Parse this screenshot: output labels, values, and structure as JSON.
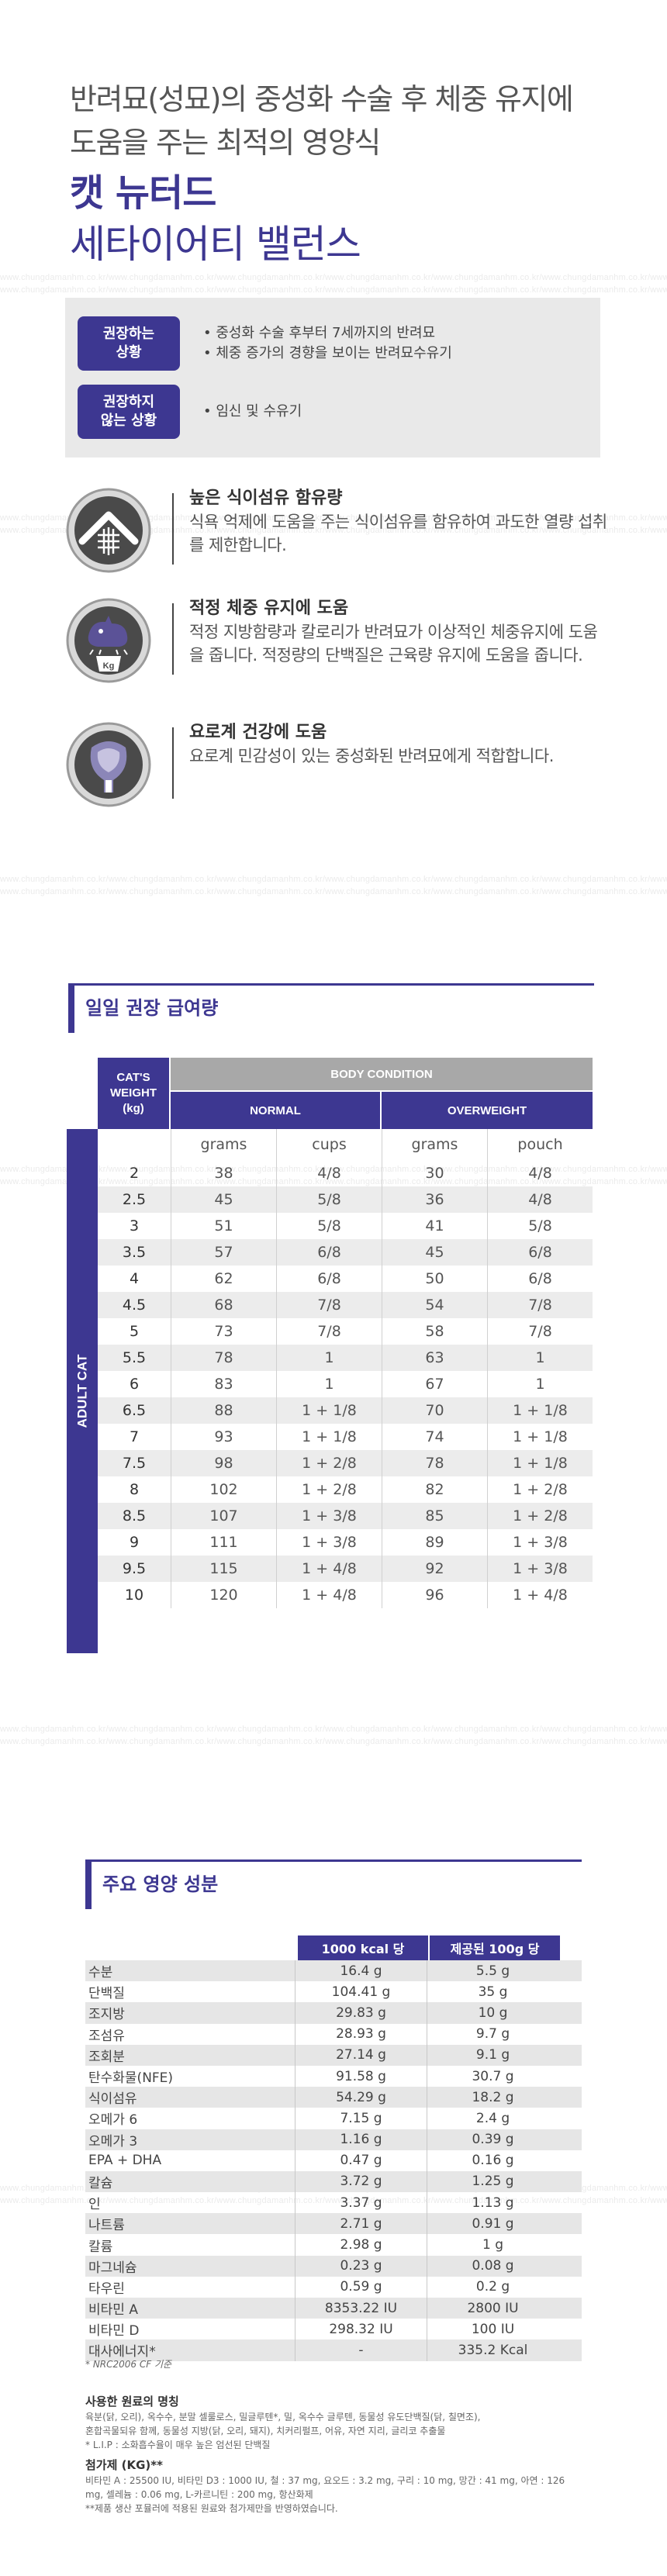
{
  "watermark": "www.chungdamanhm.co.kr/www.chungdamanhm.co.kr/www.chungdamanhm.co.kr/www.chungdamanhm.co.kr/www.chungdamanhm.co.kr/www.chungdamanhm.co.kr/www.chungdamanhm.co.kr/",
  "hero": {
    "subtitle_line1": "반려묘(성묘)의 중성화 수술 후 체중 유지에",
    "subtitle_line2": "도움을 주는 최적의 영양식",
    "product_name": "캣 뉴터드",
    "product_line": "세타이어티 밸런스"
  },
  "situations": {
    "recommended_label": "권장하는\n상황",
    "recommended_items": [
      "중성화 수술 후부터 7세까지의 반려묘",
      "체중 증가의 경향을 보이는 반려묘수유기"
    ],
    "not_recommended_label": "권장하지\n않는 상황",
    "not_recommended_items": [
      "임신 및 수유기"
    ]
  },
  "features": [
    {
      "icon": "fiber-arrows-icon",
      "title": "높은 식이섬유 함유량",
      "desc": "식욕 억제에 도움을 주는 식이섬유를 함유하여 과도한 열량 섭취를 제한합니다."
    },
    {
      "icon": "cat-weight-icon",
      "title": "적정 체중 유지에 도움",
      "desc": "적정 지방함량과 칼로리가 반려묘가 이상적인 체중유지에 도움을 줍니다. 적정량의 단백질은 근육량 유지에 도움을 줍니다."
    },
    {
      "icon": "urinary-bladder-icon",
      "title": "요로계 건강에 도움",
      "desc": "요로계 민감성이 있는 중성화된 반려묘에게 적합합니다."
    }
  ],
  "feeding": {
    "section_title": "일일 권장 급여량",
    "weight_header": "CAT'S\nWEIGHT\n(kg)",
    "body_condition": "BODY CONDITION",
    "normal": "NORMAL",
    "overweight": "OVERWEIGHT",
    "side_label": "ADULT CAT",
    "units": [
      "grams",
      "cups",
      "grams",
      "pouch"
    ],
    "rows": [
      [
        "2",
        "38",
        "4/8",
        "30",
        "4/8"
      ],
      [
        "2.5",
        "45",
        "5/8",
        "36",
        "4/8"
      ],
      [
        "3",
        "51",
        "5/8",
        "41",
        "5/8"
      ],
      [
        "3.5",
        "57",
        "6/8",
        "45",
        "6/8"
      ],
      [
        "4",
        "62",
        "6/8",
        "50",
        "6/8"
      ],
      [
        "4.5",
        "68",
        "7/8",
        "54",
        "7/8"
      ],
      [
        "5",
        "73",
        "7/8",
        "58",
        "7/8"
      ],
      [
        "5.5",
        "78",
        "1",
        "63",
        "1"
      ],
      [
        "6",
        "83",
        "1",
        "67",
        "1"
      ],
      [
        "6.5",
        "88",
        "1 + 1/8",
        "70",
        "1 + 1/8"
      ],
      [
        "7",
        "93",
        "1 + 1/8",
        "74",
        "1 + 1/8"
      ],
      [
        "7.5",
        "98",
        "1 + 2/8",
        "78",
        "1 + 1/8"
      ],
      [
        "8",
        "102",
        "1 + 2/8",
        "82",
        "1 + 2/8"
      ],
      [
        "8.5",
        "107",
        "1 + 3/8",
        "85",
        "1 + 2/8"
      ],
      [
        "9",
        "111",
        "1 + 3/8",
        "89",
        "1 + 3/8"
      ],
      [
        "9.5",
        "115",
        "1 + 4/8",
        "92",
        "1 + 3/8"
      ],
      [
        "10",
        "120",
        "1 + 4/8",
        "96",
        "1 + 4/8"
      ]
    ]
  },
  "nutrition": {
    "section_title": "주요 영양 성분",
    "col1": "1000 kcal 당",
    "col2": "제공된 100g 당",
    "rows": [
      [
        "수분",
        "16.4 g",
        "5.5 g"
      ],
      [
        "단백질",
        "104.41 g",
        "35 g"
      ],
      [
        "조지방",
        "29.83 g",
        "10 g"
      ],
      [
        "조섬유",
        "28.93 g",
        "9.7 g"
      ],
      [
        "조회분",
        "27.14 g",
        "9.1 g"
      ],
      [
        "탄수화물(NFE)",
        "91.58 g",
        "30.7 g"
      ],
      [
        "식이섬유",
        "54.29 g",
        "18.2 g"
      ],
      [
        "오메가 6",
        "7.15 g",
        "2.4 g"
      ],
      [
        "오메가 3",
        "1.16 g",
        "0.39 g"
      ],
      [
        "EPA + DHA",
        "0.47 g",
        "0.16 g"
      ],
      [
        "칼슘",
        "3.72 g",
        "1.25 g"
      ],
      [
        "인",
        "3.37 g",
        "1.13 g"
      ],
      [
        "나트륨",
        "2.71 g",
        "0.91 g"
      ],
      [
        "칼륨",
        "2.98 g",
        "1 g"
      ],
      [
        "마그네슘",
        "0.23 g",
        "0.08 g"
      ],
      [
        "타우린",
        "0.59 g",
        "0.2 g"
      ],
      [
        "비타민 A",
        "8353.22 IU",
        "2800 IU"
      ],
      [
        "비타민 D",
        "298.32 IU",
        "100 IU"
      ],
      [
        "대사에너지*",
        "-",
        "335.2 Kcal"
      ]
    ],
    "footnote": "* NRC2006 CF 기준"
  },
  "ingredients": {
    "title": "사용한 원료의 명칭",
    "text1": "육분(닭, 오리), 옥수수, 분말 셀룰로스, 밀글루텐*, 밀, 옥수수 글루텐, 동물성 유도단백질(닭, 칠면조),",
    "text2": "혼합곡물되유 함께, 동물성 지방(닭, 오리, 돼지), 치커리펄프, 어유, 자연 지리, 글리코 추출물",
    "text3": "* L.I.P : 소화흡수율이 매우 높은 엄선된 단백질",
    "additives_title": "첨가제 (KG)**",
    "additives_text": "비타민 A : 25500 IU, 비타민 D3 : 1000 IU, 철 : 37 mg, 요오드 : 3.2 mg, 구리 : 10 mg, 망간 : 41 mg, 아연 : 126 mg, 셀레늄 : 0.06 mg, L-카르니틴 : 200 mg, 항산화제",
    "additives_note": "**제품 생산 포뮬러에 적용된 원료와 첨가제만을 반영하였습니다."
  }
}
